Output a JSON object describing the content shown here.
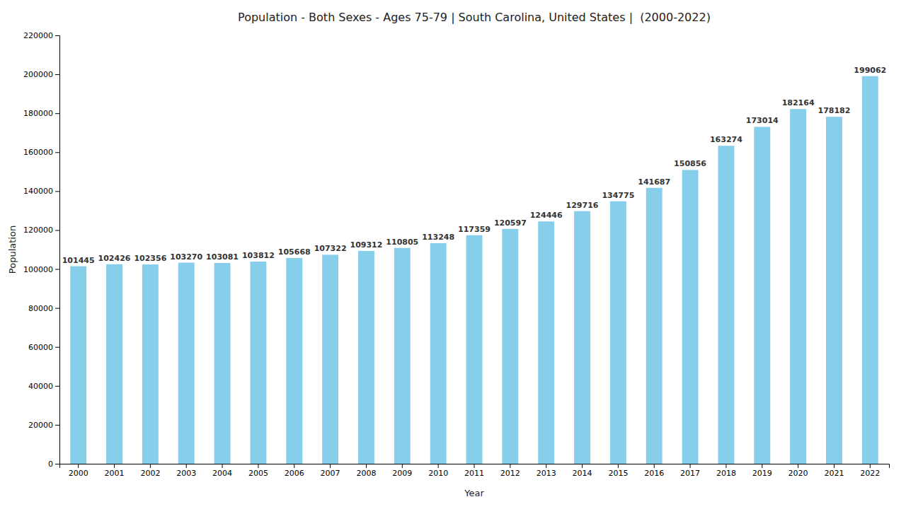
{
  "chart_data": {
    "type": "bar",
    "title": "Population - Both Sexes - Ages 75-79 | South Carolina, United States |  (2000-2022)",
    "x_label": "Year",
    "y_label": "Population",
    "categories": [
      "2000",
      "2001",
      "2002",
      "2003",
      "2004",
      "2005",
      "2006",
      "2007",
      "2008",
      "2009",
      "2010",
      "2011",
      "2012",
      "2013",
      "2014",
      "2015",
      "2016",
      "2017",
      "2018",
      "2019",
      "2020",
      "2021",
      "2022"
    ],
    "values": [
      101445,
      102426,
      102356,
      103270,
      103081,
      103812,
      105668,
      107322,
      109312,
      110805,
      113248,
      117359,
      120597,
      124446,
      129716,
      134775,
      141687,
      150856,
      163274,
      173014,
      182164,
      178182,
      199062
    ],
    "color": "#87CEEB",
    "ylim": [
      0,
      220000
    ],
    "yticks": [
      0,
      20000,
      40000,
      60000,
      80000,
      100000,
      120000,
      140000,
      160000,
      180000,
      200000,
      220000
    ],
    "grid": false,
    "data_labels": true
  }
}
